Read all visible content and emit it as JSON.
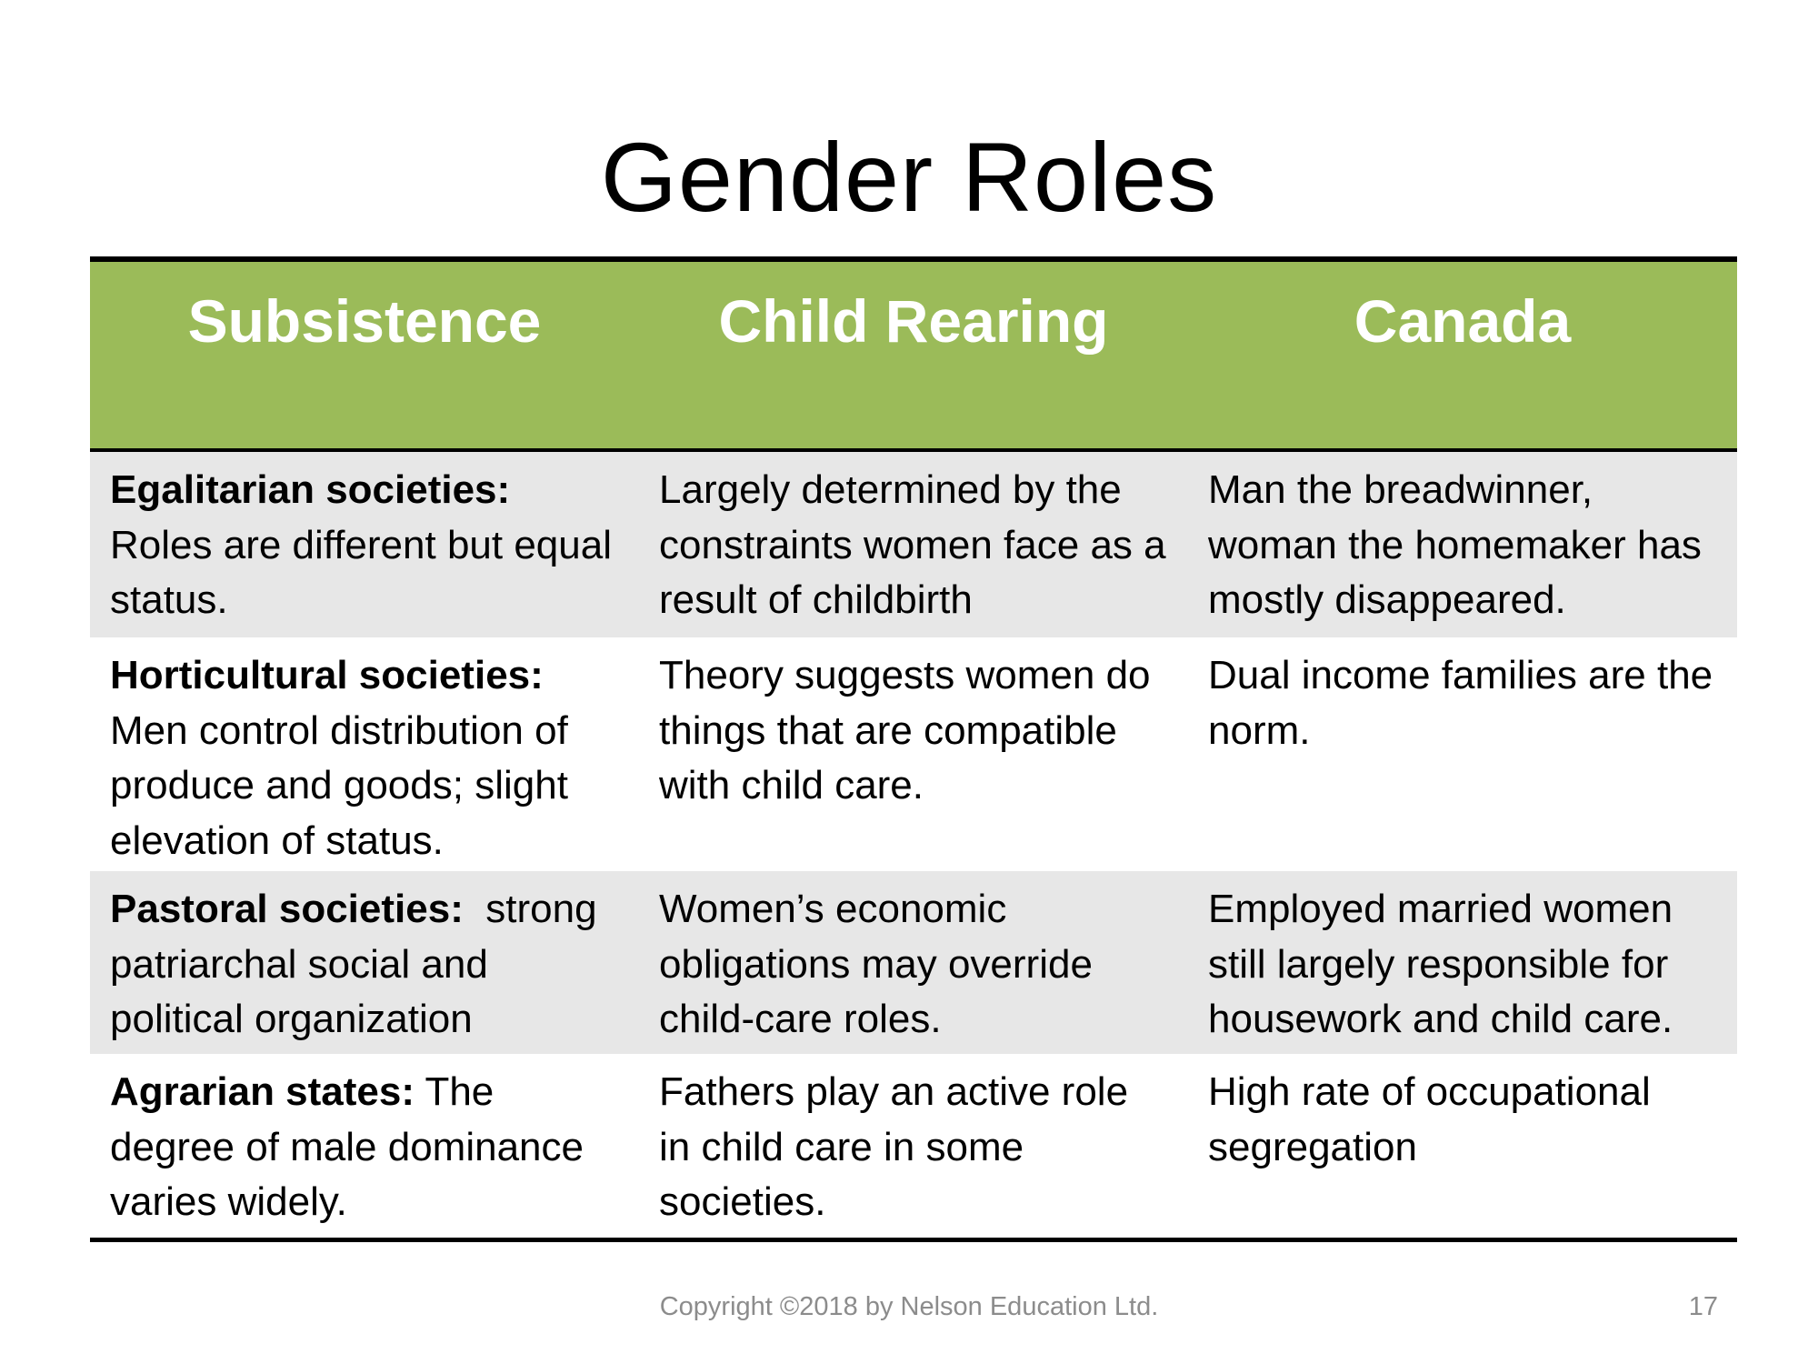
{
  "slide": {
    "title": "Gender Roles",
    "footer": "Copyright ©2018 by Nelson Education Ltd.",
    "page_number": "17"
  },
  "colors": {
    "header_fill": "#9bbb59",
    "header_text": "#ffffff",
    "row_shade": "#e7e7e7",
    "footer_text": "#8c8c8c"
  },
  "table": {
    "headers": [
      "Subsistence",
      "Child Rearing",
      "Canada"
    ],
    "rows": [
      {
        "subsistence": {
          "lead": "Egalitarian societies:",
          "text": " Roles are different but equal status."
        },
        "child_rearing": "Largely determined by the constraints women face as a result of childbirth",
        "canada": "Man the breadwinner, woman the homemaker has mostly disappeared."
      },
      {
        "subsistence": {
          "lead": "Horticultural societies:",
          "text": " Men control distribution of produce and goods; slight elevation of status."
        },
        "child_rearing": "Theory suggests women do things that are compatible with child care.",
        "canada": "Dual income families are the norm."
      },
      {
        "subsistence": {
          "lead": "Pastoral societies:",
          "text": "  strong patriarchal social and political organization"
        },
        "child_rearing": "Women’s economic obligations may override child-care roles.",
        "canada": "Employed married women still largely responsible for housework and child care."
      },
      {
        "subsistence": {
          "lead": "Agrarian states:",
          "text": " The degree of male dominance varies widely."
        },
        "child_rearing": "Fathers play an active role in child care in some societies.",
        "canada": "High rate of occupational segregation"
      }
    ]
  }
}
